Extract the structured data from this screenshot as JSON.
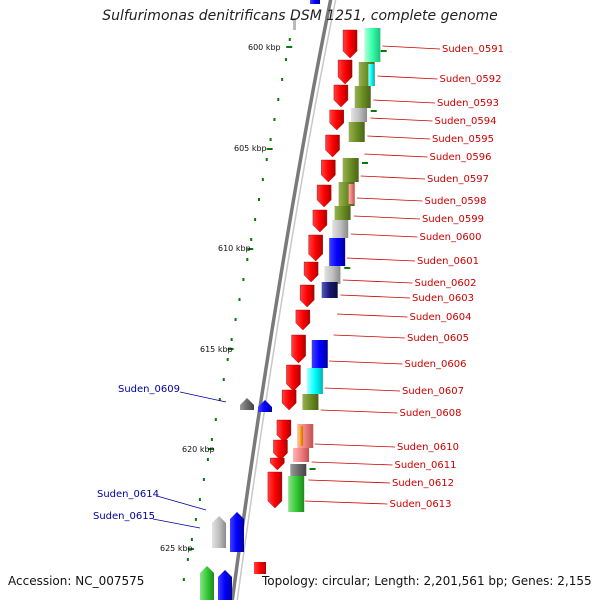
{
  "title": "Sulfurimonas denitrificans DSM 1251, complete genome",
  "footer": {
    "accession": "Accession: NC_007575",
    "summary": "Topology: circular; Length: 2,201,561 bp; Genes: 2,155"
  },
  "scale_labels": [
    "600 kbp",
    "605 kbp",
    "610 kbp",
    "615 kbp",
    "620 kbp",
    "625 kbp"
  ],
  "forward_gene_labels": [
    "Suden_0609",
    "Suden_0614",
    "Suden_0615"
  ],
  "reverse_gene_labels": [
    "Suden_0591",
    "Suden_0592",
    "Suden_0593",
    "Suden_0594",
    "Suden_0595",
    "Suden_0596",
    "Suden_0597",
    "Suden_0598",
    "Suden_0599",
    "Suden_0600",
    "Suden_0601",
    "Suden_0602",
    "Suden_0603",
    "Suden_0604",
    "Suden_0605",
    "Suden_0606",
    "Suden_0607",
    "Suden_0608",
    "Suden_0610",
    "Suden_0611",
    "Suden_0612",
    "Suden_0613"
  ],
  "colors": {
    "reverse_strand": "#ff0000",
    "forward_strand": "#0000ff",
    "forward_label": "#000099",
    "reverse_label": "#cc0000",
    "backbone": "#888888",
    "tick": "#0a7a0a"
  }
}
